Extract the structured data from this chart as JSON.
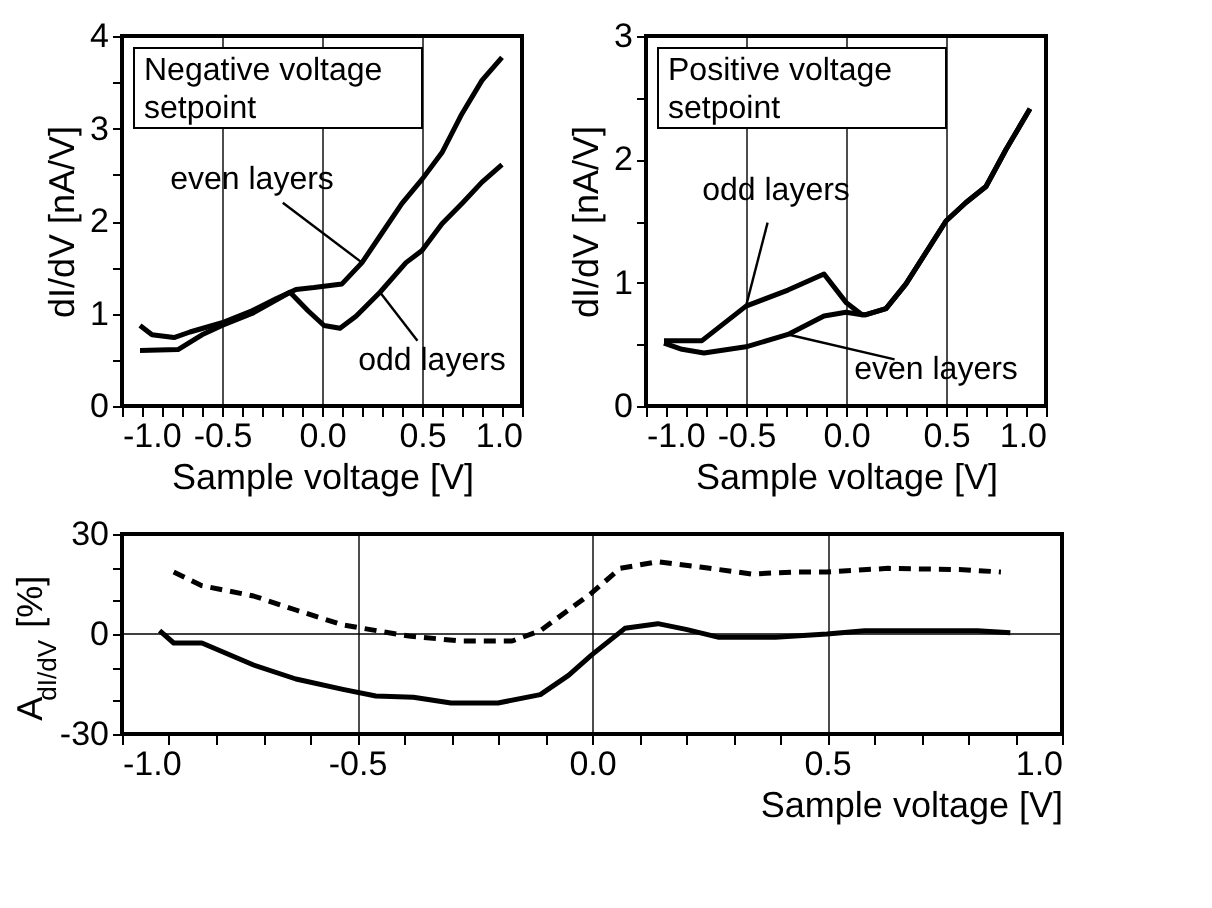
{
  "chart_data": [
    {
      "type": "line",
      "xlabel": "Sample voltage [V]",
      "ylabel": "dI/dV [nA/V]",
      "annotations": [
        "Negative voltage setpoint"
      ],
      "grid": "x",
      "xlim": [
        -1,
        1
      ],
      "ylim": [
        0,
        4
      ],
      "xticks": [
        {
          "value": -1,
          "label": "-1.0"
        },
        {
          "value": -0.9,
          "label": null
        },
        {
          "value": -0.8,
          "label": null
        },
        {
          "value": -0.7,
          "label": null
        },
        {
          "value": -0.6,
          "label": null
        },
        {
          "value": -0.5,
          "label": "-0.5"
        },
        {
          "value": -0.4,
          "label": null
        },
        {
          "value": -0.3,
          "label": null
        },
        {
          "value": -0.2,
          "label": null
        },
        {
          "value": -0.1,
          "label": null
        },
        {
          "value": 0,
          "label": "0.0"
        },
        {
          "value": 0.1,
          "label": null
        },
        {
          "value": 0.2,
          "label": null
        },
        {
          "value": 0.3,
          "label": null
        },
        {
          "value": 0.4,
          "label": null
        },
        {
          "value": 0.5,
          "label": "0.5"
        },
        {
          "value": 0.6,
          "label": null
        },
        {
          "value": 0.7,
          "label": null
        },
        {
          "value": 0.8,
          "label": null
        },
        {
          "value": 0.9,
          "label": null
        },
        {
          "value": 1,
          "label": "1.0"
        }
      ],
      "yticks": [
        0,
        {
          "value": 0.5,
          "label": null
        },
        1,
        {
          "value": 1.5,
          "label": null
        },
        2,
        {
          "value": 2.5,
          "label": null
        },
        3,
        {
          "value": 3.5,
          "label": null
        },
        4
      ],
      "series": [
        {
          "name": "even layers",
          "color": "#000000",
          "line_style": "solid",
          "x": [
            -0.91,
            -0.85,
            -0.74,
            -0.66,
            -0.5,
            -0.35,
            -0.23,
            -0.13,
            -0.04,
            0.1,
            0.2,
            0.3,
            0.4,
            0.5,
            0.6,
            0.7,
            0.8,
            0.9
          ],
          "values": [
            0.87,
            0.77,
            0.74,
            0.8,
            0.9,
            1.03,
            1.16,
            1.26,
            1.28,
            1.32,
            1.55,
            1.87,
            2.19,
            2.45,
            2.74,
            3.16,
            3.52,
            3.77
          ]
        },
        {
          "name": "odd layers",
          "color": "#000000",
          "line_style": "solid",
          "x": [
            -0.91,
            -0.72,
            -0.6,
            -0.5,
            -0.35,
            -0.16,
            -0.07,
            0.01,
            0.09,
            0.17,
            0.29,
            0.42,
            0.5,
            0.6,
            0.7,
            0.8,
            0.9
          ],
          "values": [
            0.6,
            0.61,
            0.77,
            0.87,
            1.0,
            1.23,
            1.03,
            0.87,
            0.84,
            0.97,
            1.23,
            1.55,
            1.68,
            1.97,
            2.19,
            2.42,
            2.61
          ]
        }
      ]
    },
    {
      "type": "line",
      "xlabel": "Sample voltage [V]",
      "ylabel": "dI/dV [nA/V]",
      "annotations": [
        "Positive voltage setpoint"
      ],
      "grid": "x",
      "xlim": [
        -1,
        1
      ],
      "ylim": [
        0,
        3
      ],
      "xticks": [
        {
          "value": -1,
          "label": "-1.0"
        },
        {
          "value": -0.9,
          "label": null
        },
        {
          "value": -0.8,
          "label": null
        },
        {
          "value": -0.7,
          "label": null
        },
        {
          "value": -0.6,
          "label": null
        },
        {
          "value": -0.5,
          "label": "-0.5"
        },
        {
          "value": -0.4,
          "label": null
        },
        {
          "value": -0.3,
          "label": null
        },
        {
          "value": -0.2,
          "label": null
        },
        {
          "value": -0.1,
          "label": null
        },
        {
          "value": 0,
          "label": "0.0"
        },
        {
          "value": 0.1,
          "label": null
        },
        {
          "value": 0.2,
          "label": null
        },
        {
          "value": 0.3,
          "label": null
        },
        {
          "value": 0.4,
          "label": null
        },
        {
          "value": 0.5,
          "label": "0.5"
        },
        {
          "value": 0.6,
          "label": null
        },
        {
          "value": 0.7,
          "label": null
        },
        {
          "value": 0.8,
          "label": null
        },
        {
          "value": 0.9,
          "label": null
        },
        {
          "value": 1,
          "label": "1.0"
        }
      ],
      "yticks": [
        0,
        {
          "value": 0.5,
          "label": null
        },
        1,
        {
          "value": 1.5,
          "label": null
        },
        2,
        {
          "value": 2.5,
          "label": null
        },
        3
      ],
      "series": [
        {
          "name": "odd layers",
          "color": "#000000",
          "line_style": "solid",
          "x": [
            -0.91,
            -0.72,
            -0.5,
            -0.29,
            -0.11,
            0,
            0.08,
            0.1,
            0.2,
            0.3,
            0.5,
            0.6,
            0.7,
            0.8,
            0.92
          ],
          "values": [
            0.53,
            0.53,
            0.81,
            0.94,
            1.07,
            0.84,
            0.74,
            0.74,
            0.79,
            0.99,
            1.5,
            1.65,
            1.78,
            2.08,
            2.41
          ]
        },
        {
          "name": "even layers",
          "color": "#000000",
          "line_style": "solid",
          "x": [
            -0.91,
            -0.82,
            -0.71,
            -0.5,
            -0.29,
            -0.11,
            0,
            0.08,
            0.1,
            0.2,
            0.3,
            0.5,
            0.6,
            0.7,
            0.8,
            0.92
          ],
          "values": [
            0.51,
            0.46,
            0.43,
            0.48,
            0.58,
            0.73,
            0.76,
            0.74,
            0.74,
            0.79,
            0.99,
            1.5,
            1.65,
            1.78,
            2.08,
            2.41
          ]
        }
      ]
    },
    {
      "type": "line",
      "xlabel": "Sample voltage [V]",
      "ylabel": "A$_{dI/dV}$ [%]",
      "grid": "x",
      "xlim": [
        -1,
        1
      ],
      "ylim": [
        -30,
        30
      ],
      "xticks": [
        {
          "value": -1,
          "label": "-1.0"
        },
        {
          "value": -0.9,
          "label": null
        },
        {
          "value": -0.8,
          "label": null
        },
        {
          "value": -0.7,
          "label": null
        },
        {
          "value": -0.6,
          "label": null
        },
        {
          "value": -0.5,
          "label": "-0.5"
        },
        {
          "value": -0.4,
          "label": null
        },
        {
          "value": -0.3,
          "label": null
        },
        {
          "value": -0.2,
          "label": null
        },
        {
          "value": -0.1,
          "label": null
        },
        {
          "value": 0,
          "label": "0.0"
        },
        {
          "value": 0.1,
          "label": null
        },
        {
          "value": 0.2,
          "label": null
        },
        {
          "value": 0.3,
          "label": null
        },
        {
          "value": 0.4,
          "label": null
        },
        {
          "value": 0.5,
          "label": "0.5"
        },
        {
          "value": 0.6,
          "label": null
        },
        {
          "value": 0.7,
          "label": null
        },
        {
          "value": 0.8,
          "label": null
        },
        {
          "value": 0.9,
          "label": null
        },
        {
          "value": 1,
          "label": "1.0"
        }
      ],
      "yticks": [
        -30,
        {
          "value": -20,
          "label": null
        },
        {
          "value": -10,
          "label": null
        },
        0,
        {
          "value": 10,
          "label": null
        },
        {
          "value": 20,
          "label": null
        },
        30
      ],
      "ref_lines": [
        {
          "axis": "y",
          "value": 0,
          "color": "#000000"
        }
      ],
      "series": [
        {
          "color": "#000000",
          "line_style": "dashed",
          "x": [
            -0.89,
            -0.83,
            -0.72,
            -0.63,
            -0.53,
            -0.39,
            -0.28,
            -0.17,
            -0.11,
            -0.05,
            0,
            0.06,
            0.14,
            0.23,
            0.34,
            0.43,
            0.5,
            0.63,
            0.79,
            0.87
          ],
          "values": [
            18.6,
            14.5,
            11.4,
            7.2,
            2.7,
            -0.6,
            -2.1,
            -2.1,
            1,
            7.2,
            12.4,
            19.7,
            21.7,
            20.1,
            18,
            18.6,
            18.6,
            19.7,
            19.3,
            18.6
          ]
        },
        {
          "color": "#000000",
          "line_style": "solid",
          "x": [
            -0.92,
            -0.89,
            -0.83,
            -0.72,
            -0.63,
            -0.53,
            -0.46,
            -0.38,
            -0.3,
            -0.2,
            -0.11,
            -0.05,
            0,
            0.07,
            0.14,
            0.2,
            0.27,
            0.39,
            0.5,
            0.58,
            0.71,
            0.82,
            0.89
          ],
          "values": [
            1,
            -2.7,
            -2.7,
            -9.3,
            -13.5,
            -16.6,
            -18.6,
            -19,
            -20.7,
            -20.7,
            -18.2,
            -12.4,
            -6.2,
            1.7,
            3.1,
            1.4,
            -1,
            -1,
            0,
            1,
            1,
            1,
            0.4
          ]
        }
      ]
    }
  ]
}
